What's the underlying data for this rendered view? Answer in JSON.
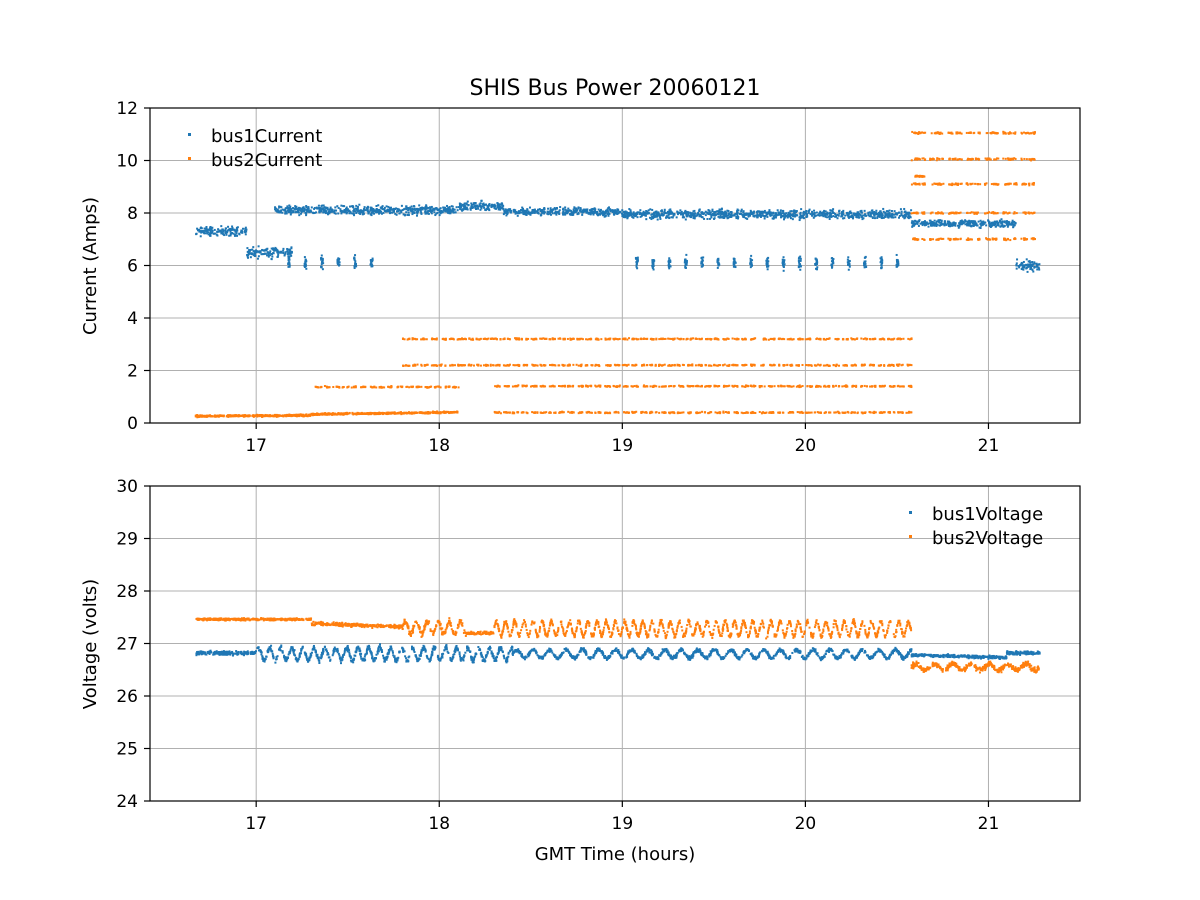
{
  "figure_title": "SHIS Bus Power 20060121",
  "colors": {
    "bus1": "#1f77b4",
    "bus2": "#ff7f0e",
    "grid": "#b0b0b0"
  },
  "chart_data": [
    {
      "type": "scatter",
      "name": "current",
      "title": "SHIS Bus Power 20060121",
      "xlabel": "",
      "ylabel": "Current (Amps)",
      "xlim": [
        16.42,
        21.5
      ],
      "ylim": [
        0,
        12
      ],
      "xticks": [
        17,
        18,
        19,
        20,
        21
      ],
      "yticks": [
        0,
        2,
        4,
        6,
        8,
        10,
        12
      ],
      "grid": true,
      "legend_position": "top-left",
      "series": [
        {
          "name": "bus1Current",
          "color": "#1f77b4",
          "segments": [
            {
              "x0": 16.67,
              "x1": 16.95,
              "levels": [
                7.3
              ],
              "jitter": 0.25,
              "mode": "band"
            },
            {
              "x0": 16.95,
              "x1": 17.2,
              "levels": [
                6.5
              ],
              "jitter": 0.3,
              "mode": "band"
            },
            {
              "x0": 17.1,
              "x1": 18.1,
              "levels": [
                8.1
              ],
              "jitter": 0.25,
              "mode": "band"
            },
            {
              "x0": 18.1,
              "x1": 18.35,
              "levels": [
                8.25
              ],
              "jitter": 0.25,
              "mode": "band"
            },
            {
              "x0": 18.35,
              "x1": 19.0,
              "levels": [
                8.05
              ],
              "jitter": 0.22,
              "mode": "band"
            },
            {
              "x0": 19.0,
              "x1": 20.58,
              "levels": [
                7.95
              ],
              "jitter": 0.25,
              "mode": "band"
            },
            {
              "x0": 20.58,
              "x1": 21.15,
              "levels": [
                7.6
              ],
              "jitter": 0.2,
              "mode": "band"
            },
            {
              "x0": 17.18,
              "x1": 17.7,
              "levels": [
                6.1
              ],
              "jitter": 0.35,
              "mode": "spikes",
              "period": 0.09
            },
            {
              "x0": 19.08,
              "x1": 20.56,
              "levels": [
                6.1
              ],
              "jitter": 0.35,
              "mode": "spikes",
              "period": 0.089
            },
            {
              "x0": 21.15,
              "x1": 21.28,
              "levels": [
                6.0
              ],
              "jitter": 0.3,
              "mode": "band"
            }
          ]
        },
        {
          "name": "bus2Current",
          "color": "#ff7f0e",
          "segments": [
            {
              "x0": 16.67,
              "x1": 17.3,
              "levels": [
                0.26
              ],
              "jitter": 0.05,
              "mode": "band",
              "slope": 0.03
            },
            {
              "x0": 17.3,
              "x1": 18.1,
              "levels": [
                0.33
              ],
              "jitter": 0.05,
              "mode": "band",
              "slope": 0.08
            },
            {
              "x0": 17.32,
              "x1": 18.12,
              "levels": [
                1.37
              ],
              "jitter": 0.04,
              "mode": "dash",
              "period": 0.05
            },
            {
              "x0": 17.8,
              "x1": 18.12,
              "levels": [
                2.2,
                3.2
              ],
              "jitter": 0.04,
              "mode": "dash",
              "period": 0.05
            },
            {
              "x0": 18.12,
              "x1": 18.3,
              "levels": [
                2.2,
                3.2
              ],
              "jitter": 0.04,
              "mode": "dash",
              "period": 0.04
            },
            {
              "x0": 18.3,
              "x1": 20.58,
              "levels": [
                0.4,
                1.4,
                2.2,
                3.2
              ],
              "jitter": 0.04,
              "mode": "dash",
              "period": 0.05
            },
            {
              "x0": 20.58,
              "x1": 21.28,
              "levels": [
                11.05,
                10.05,
                9.1,
                8.0,
                7.0
              ],
              "jitter": 0.05,
              "mode": "dash",
              "period": 0.1
            },
            {
              "x0": 20.6,
              "x1": 20.65,
              "levels": [
                9.4
              ],
              "jitter": 0.05,
              "mode": "band"
            }
          ]
        }
      ]
    },
    {
      "type": "scatter",
      "name": "voltage",
      "title": "",
      "xlabel": "GMT Time (hours)",
      "ylabel": "Voltage (volts)",
      "xlim": [
        16.42,
        21.5
      ],
      "ylim": [
        24,
        30
      ],
      "xticks": [
        17,
        18,
        19,
        20,
        21
      ],
      "yticks": [
        24,
        25,
        26,
        27,
        28,
        29,
        30
      ],
      "grid": true,
      "legend_position": "top-right",
      "series": [
        {
          "name": "bus1Voltage",
          "color": "#1f77b4",
          "segments": [
            {
              "x0": 16.67,
              "x1": 17.0,
              "levels": [
                26.82
              ],
              "jitter": 0.06,
              "mode": "band"
            },
            {
              "x0": 17.0,
              "x1": 18.4,
              "levels": [
                26.8
              ],
              "jitter": 0.07,
              "mode": "band",
              "osc": 0.12,
              "period": 0.06
            },
            {
              "x0": 18.4,
              "x1": 20.58,
              "levels": [
                26.8
              ],
              "jitter": 0.05,
              "mode": "band",
              "osc": 0.08,
              "period": 0.09
            },
            {
              "x0": 20.58,
              "x1": 21.1,
              "levels": [
                26.78
              ],
              "jitter": 0.04,
              "mode": "band",
              "slope": -0.05
            },
            {
              "x0": 21.1,
              "x1": 21.28,
              "levels": [
                26.82
              ],
              "jitter": 0.05,
              "mode": "band"
            }
          ]
        },
        {
          "name": "bus2Voltage",
          "color": "#ff7f0e",
          "segments": [
            {
              "x0": 16.67,
              "x1": 17.3,
              "levels": [
                27.46
              ],
              "jitter": 0.03,
              "mode": "band"
            },
            {
              "x0": 17.3,
              "x1": 17.8,
              "levels": [
                27.38
              ],
              "jitter": 0.05,
              "mode": "band",
              "slope": -0.06
            },
            {
              "x0": 17.8,
              "x1": 18.15,
              "levels": [
                27.3
              ],
              "jitter": 0.08,
              "mode": "band",
              "osc": 0.12,
              "period": 0.06
            },
            {
              "x0": 18.15,
              "x1": 18.3,
              "levels": [
                27.2
              ],
              "jitter": 0.04,
              "mode": "band"
            },
            {
              "x0": 18.3,
              "x1": 20.58,
              "levels": [
                27.28
              ],
              "jitter": 0.06,
              "mode": "band",
              "osc": 0.14,
              "period": 0.05
            },
            {
              "x0": 20.58,
              "x1": 21.28,
              "levels": [
                26.55
              ],
              "jitter": 0.07,
              "mode": "band",
              "osc": 0.06,
              "period": 0.1
            }
          ]
        }
      ]
    }
  ]
}
